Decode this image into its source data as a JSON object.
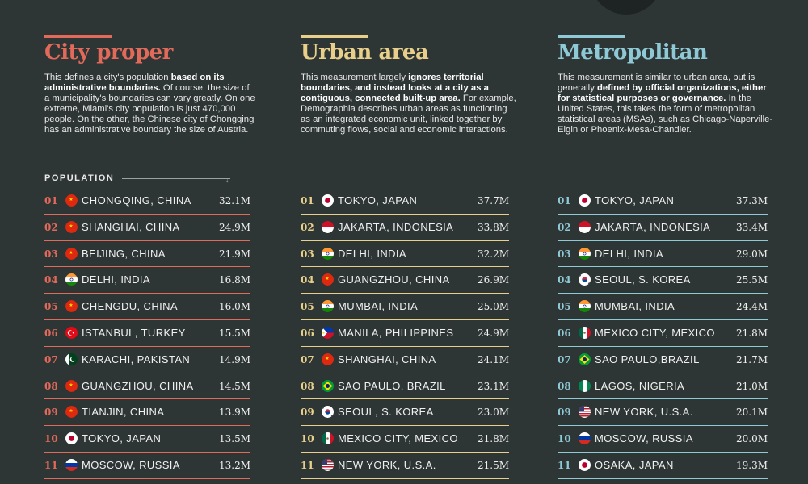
{
  "colors": {
    "city_proper": "#e26a5a",
    "urban_area": "#e8d08a",
    "metropolitan": "#8ec9d6",
    "background": "#2e3535"
  },
  "chart_data": [
    {
      "type": "table",
      "key": "city_proper",
      "title": "City proper",
      "desc": [
        {
          "t": "This defines a city's population "
        },
        {
          "t": "based on its administrative boundaries.",
          "b": true
        },
        {
          "t": " Of course, the size of a municipality's boundaries can vary greatly. On one extreme, Miami's city population is just 470,000 people. On the other, the Chinese city of Chongqing has an administrative boundary the size of Austria."
        }
      ],
      "column_label": "POPULATION",
      "rows": [
        {
          "rank": "01",
          "flag": "china-flag-icon",
          "city": "CHONGQING, CHINA",
          "value": "32.1M"
        },
        {
          "rank": "02",
          "flag": "china-flag-icon",
          "city": "SHANGHAI, CHINA",
          "value": "24.9M"
        },
        {
          "rank": "03",
          "flag": "china-flag-icon",
          "city": "BEIJING, CHINA",
          "value": "21.9M"
        },
        {
          "rank": "04",
          "flag": "india-flag-icon",
          "city": "DELHI, INDIA",
          "value": "16.8M"
        },
        {
          "rank": "05",
          "flag": "china-flag-icon",
          "city": "CHENGDU, CHINA",
          "value": "16.0M"
        },
        {
          "rank": "06",
          "flag": "turkey-flag-icon",
          "city": "ISTANBUL, TURKEY",
          "value": "15.5M"
        },
        {
          "rank": "07",
          "flag": "pakistan-flag-icon",
          "city": "KARACHI, PAKISTAN",
          "value": "14.9M"
        },
        {
          "rank": "08",
          "flag": "china-flag-icon",
          "city": "GUANGZHOU, CHINA",
          "value": "14.5M"
        },
        {
          "rank": "09",
          "flag": "china-flag-icon",
          "city": "TIANJIN, CHINA",
          "value": "13.9M"
        },
        {
          "rank": "10",
          "flag": "japan-flag-icon",
          "city": "TOKYO, JAPAN",
          "value": "13.5M"
        },
        {
          "rank": "11",
          "flag": "russia-flag-icon",
          "city": "MOSCOW, RUSSIA",
          "value": "13.2M"
        }
      ]
    },
    {
      "type": "table",
      "key": "urban_area",
      "title": "Urban area",
      "desc": [
        {
          "t": "This measurement largely "
        },
        {
          "t": "ignores territorial boundaries, and instead looks at a city as a contiguous, connected built-up area.",
          "b": true
        },
        {
          "t": " For example, Demographia describes urban areas as functioning as an integrated economic unit, linked together by commuting flows, social and economic interactions."
        }
      ],
      "rows": [
        {
          "rank": "01",
          "flag": "japan-flag-icon",
          "city": "TOKYO, JAPAN",
          "value": "37.7M"
        },
        {
          "rank": "02",
          "flag": "indonesia-flag-icon",
          "city": "JAKARTA, INDONESIA",
          "value": "33.8M"
        },
        {
          "rank": "03",
          "flag": "india-flag-icon",
          "city": "DELHI, INDIA",
          "value": "32.2M"
        },
        {
          "rank": "04",
          "flag": "china-flag-icon",
          "city": "GUANGZHOU, CHINA",
          "value": "26.9M"
        },
        {
          "rank": "05",
          "flag": "india-flag-icon",
          "city": "MUMBAI, INDIA",
          "value": "25.0M"
        },
        {
          "rank": "06",
          "flag": "philippines-flag-icon",
          "city": "MANILA, PHILIPPINES",
          "value": "24.9M"
        },
        {
          "rank": "07",
          "flag": "china-flag-icon",
          "city": "SHANGHAI, CHINA",
          "value": "24.1M"
        },
        {
          "rank": "08",
          "flag": "brazil-flag-icon",
          "city": "SAO PAULO, BRAZIL",
          "value": "23.1M"
        },
        {
          "rank": "09",
          "flag": "south-korea-flag-icon",
          "city": "SEOUL, S. KOREA",
          "value": "23.0M"
        },
        {
          "rank": "10",
          "flag": "mexico-flag-icon",
          "city": "MEXICO CITY, MEXICO",
          "value": "21.8M"
        },
        {
          "rank": "11",
          "flag": "usa-flag-icon",
          "city": "NEW YORK, U.S.A.",
          "value": "21.5M"
        }
      ]
    },
    {
      "type": "table",
      "key": "metropolitan",
      "title": "Metropolitan",
      "desc": [
        {
          "t": "This measurement is similar to urban area, but is generally "
        },
        {
          "t": "defined by official organizations, either for statistical purposes or governance.",
          "b": true
        },
        {
          "t": " In the United States, this takes the form of metropolitan statistical areas (MSAs), such as Chicago-Naperville-Elgin or Phoenix-Mesa-Chandler."
        }
      ],
      "rows": [
        {
          "rank": "01",
          "flag": "japan-flag-icon",
          "city": "TOKYO, JAPAN",
          "value": "37.3M"
        },
        {
          "rank": "02",
          "flag": "indonesia-flag-icon",
          "city": "JAKARTA, INDONESIA",
          "value": "33.4M"
        },
        {
          "rank": "03",
          "flag": "india-flag-icon",
          "city": "DELHI, INDIA",
          "value": "29.0M"
        },
        {
          "rank": "04",
          "flag": "south-korea-flag-icon",
          "city": "SEOUL, S. KOREA",
          "value": "25.5M"
        },
        {
          "rank": "05",
          "flag": "india-flag-icon",
          "city": "MUMBAI, INDIA",
          "value": "24.4M"
        },
        {
          "rank": "06",
          "flag": "mexico-flag-icon",
          "city": "MEXICO CITY, MEXICO",
          "value": "21.8M"
        },
        {
          "rank": "07",
          "flag": "brazil-flag-icon",
          "city": "SAO PAULO,BRAZIL",
          "value": "21.7M"
        },
        {
          "rank": "08",
          "flag": "nigeria-flag-icon",
          "city": "LAGOS, NIGERIA",
          "value": "21.0M"
        },
        {
          "rank": "09",
          "flag": "usa-flag-icon",
          "city": "NEW YORK, U.S.A.",
          "value": "20.1M"
        },
        {
          "rank": "10",
          "flag": "russia-flag-icon",
          "city": "MOSCOW, RUSSIA",
          "value": "20.0M"
        },
        {
          "rank": "11",
          "flag": "japan-flag-icon",
          "city": "OSAKA, JAPAN",
          "value": "19.3M"
        }
      ]
    }
  ]
}
